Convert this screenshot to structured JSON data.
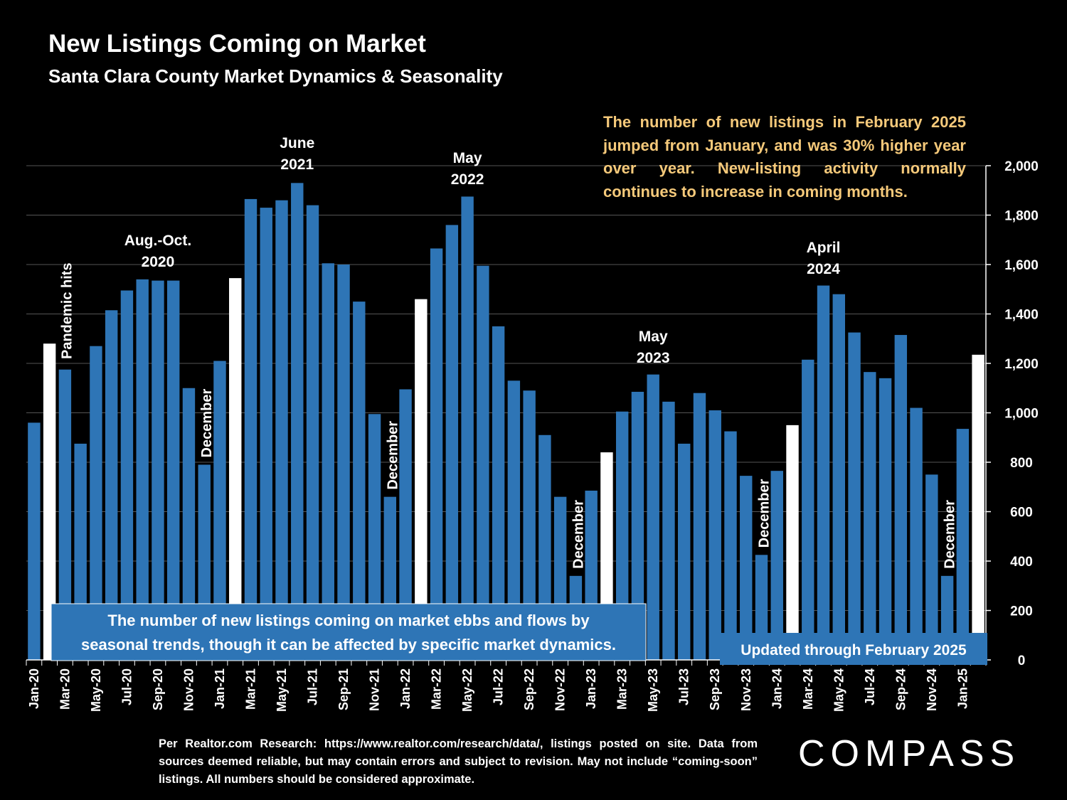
{
  "title": "New Listings Coming on Market",
  "subtitle": "Santa Clara County Market Dynamics & Seasonality",
  "callout": "The number of new listings in February 2025 jumped from January, and was 30% higher year over year. New-listing activity normally continues to increase in coming months.",
  "footnote": "Per Realtor.com Research: https://www.realtor.com/research/data/, listings posted on site. Data from sources deemed reliable, but may contain errors and subject to revision. May not include “coming-soon” listings. All numbers should be considered approximate.",
  "logo": "COMPASS",
  "colors": {
    "background": "#000000",
    "bar": "#2e75b6",
    "bar_february": "#ffffff",
    "callout_text": "#f5c97a",
    "info_box": "#2e75b6",
    "text": "#ffffff"
  },
  "chart_data": {
    "type": "bar",
    "title": "New Listings Coming on Market",
    "subtitle": "Santa Clara County Market Dynamics & Seasonality",
    "xlabel": "",
    "ylabel": "",
    "ylim": [
      0,
      2000
    ],
    "yticks": [
      0,
      200,
      400,
      600,
      800,
      1000,
      1200,
      1400,
      1600,
      1800,
      2000
    ],
    "ytick_labels": [
      "0",
      "200",
      "400",
      "600",
      "800",
      "1,000",
      "1,200",
      "1,400",
      "1,600",
      "1,800",
      "2,000"
    ],
    "y_axis_side": "right",
    "grid": true,
    "categories": [
      "Jan-20",
      "Feb-20",
      "Mar-20",
      "Apr-20",
      "May-20",
      "Jun-20",
      "Jul-20",
      "Aug-20",
      "Sep-20",
      "Oct-20",
      "Nov-20",
      "Dec-20",
      "Jan-21",
      "Feb-21",
      "Mar-21",
      "Apr-21",
      "May-21",
      "Jun-21",
      "Jul-21",
      "Aug-21",
      "Sep-21",
      "Oct-21",
      "Nov-21",
      "Dec-21",
      "Jan-22",
      "Feb-22",
      "Mar-22",
      "Apr-22",
      "May-22",
      "Jun-22",
      "Jul-22",
      "Aug-22",
      "Sep-22",
      "Oct-22",
      "Nov-22",
      "Dec-22",
      "Jan-23",
      "Feb-23",
      "Mar-23",
      "Apr-23",
      "May-23",
      "Jun-23",
      "Jul-23",
      "Aug-23",
      "Sep-23",
      "Oct-23",
      "Nov-23",
      "Dec-23",
      "Jan-24",
      "Feb-24",
      "Mar-24",
      "Apr-24",
      "May-24",
      "Jun-24",
      "Jul-24",
      "Aug-24",
      "Sep-24",
      "Oct-24",
      "Nov-24",
      "Dec-24",
      "Jan-25",
      "Feb-25"
    ],
    "tick_labels": [
      "Jan-20",
      "Mar-20",
      "May-20",
      "Jul-20",
      "Sep-20",
      "Nov-20",
      "Jan-21",
      "Mar-21",
      "May-21",
      "Jul-21",
      "Sep-21",
      "Nov-21",
      "Jan-22",
      "Mar-22",
      "May-22",
      "Jul-22",
      "Sep-22",
      "Nov-22",
      "Jan-23",
      "Mar-23",
      "May-23",
      "Jul-23",
      "Sep-23",
      "Nov-23",
      "Jan-24",
      "Mar-24",
      "May-24",
      "Jul-24",
      "Sep-24",
      "Nov-24",
      "Jan-25"
    ],
    "values": [
      960,
      1280,
      1175,
      875,
      1270,
      1415,
      1495,
      1540,
      1535,
      1535,
      1100,
      790,
      1210,
      1545,
      1865,
      1830,
      1860,
      1930,
      1840,
      1605,
      1600,
      1450,
      995,
      660,
      1095,
      1460,
      1665,
      1760,
      1875,
      1595,
      1350,
      1130,
      1090,
      910,
      660,
      340,
      685,
      840,
      1005,
      1085,
      1155,
      1045,
      875,
      1080,
      1010,
      925,
      745,
      425,
      765,
      950,
      1215,
      1515,
      1480,
      1325,
      1165,
      1140,
      1315,
      1020,
      750,
      340,
      935,
      1235
    ],
    "highlight_categories": [
      "Feb-20",
      "Feb-21",
      "Feb-22",
      "Feb-23",
      "Feb-24",
      "Feb-25"
    ],
    "annotations": [
      {
        "text": "Pandemic hits",
        "near": "Feb-20",
        "orientation": "vertical"
      },
      {
        "text": "Aug.-Oct. 2020",
        "near": "Sep-20"
      },
      {
        "text": "December",
        "near": "Dec-20",
        "orientation": "vertical"
      },
      {
        "text": "June 2021",
        "near": "Jun-21"
      },
      {
        "text": "December",
        "near": "Dec-21",
        "orientation": "vertical"
      },
      {
        "text": "May 2022",
        "near": "May-22"
      },
      {
        "text": "December",
        "near": "Dec-22",
        "orientation": "vertical"
      },
      {
        "text": "May 2023",
        "near": "May-23"
      },
      {
        "text": "December",
        "near": "Dec-23",
        "orientation": "vertical"
      },
      {
        "text": "April 2024",
        "near": "Apr-24"
      },
      {
        "text": "December",
        "near": "Dec-24",
        "orientation": "vertical"
      }
    ],
    "info_box_text": "The number of new listings coming on market ebbs and flows by seasonal trends, though it can be affected by specific market dynamics.",
    "updated_text": "Updated through February 2025"
  }
}
